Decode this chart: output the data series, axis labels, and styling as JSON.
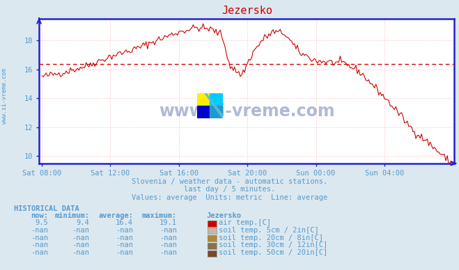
{
  "title": "Jezersko",
  "bg_color": "#dce8f0",
  "plot_bg_color": "#ffffff",
  "grid_color": "#ffbbbb",
  "grid_style": ":",
  "axis_color": "#2222cc",
  "title_color": "#cc0000",
  "text_color": "#5599cc",
  "ylabel_text": "www.si-vreme.com",
  "watermark_text": "www.si-vreme.com",
  "subtitle1": "Slovenia / weather data - automatic stations.",
  "subtitle2": "last day / 5 minutes.",
  "subtitle3": "Values: average  Units: metric  Line: average",
  "hist_title": "HISTORICAL DATA",
  "col_headers": [
    "now:",
    "minimum:",
    "average:",
    "maximum:",
    "Jezersko"
  ],
  "rows": [
    {
      "now": "9.5",
      "min": "9.4",
      "avg": "16.4",
      "max": "19.1",
      "color": "#cc0000",
      "label": "air temp.[C]"
    },
    {
      "now": "-nan",
      "min": "-nan",
      "avg": "-nan",
      "max": "-nan",
      "color": "#c8b8a0",
      "label": "soil temp. 5cm / 2in[C]"
    },
    {
      "now": "-nan",
      "min": "-nan",
      "avg": "-nan",
      "max": "-nan",
      "color": "#b08830",
      "label": "soil temp. 20cm / 8in[C]"
    },
    {
      "now": "-nan",
      "min": "-nan",
      "avg": "-nan",
      "max": "-nan",
      "color": "#887050",
      "label": "soil temp. 30cm / 12in[C]"
    },
    {
      "now": "-nan",
      "min": "-nan",
      "avg": "-nan",
      "max": "-nan",
      "color": "#784828",
      "label": "soil temp. 50cm / 20in[C]"
    }
  ],
  "x_ticks": [
    "Sat 08:00",
    "Sat 12:00",
    "Sat 16:00",
    "Sat 20:00",
    "Sun 00:00",
    "Sun 04:00"
  ],
  "x_tick_positions": [
    0,
    48,
    96,
    144,
    192,
    240
  ],
  "y_ticks": [
    10,
    12,
    14,
    16,
    18
  ],
  "ylim": [
    9.5,
    19.5
  ],
  "xlim": [
    -2,
    289
  ],
  "average_line": 16.4,
  "average_line_color": "#cc0000",
  "line_color": "#cc0000",
  "keypoints_x": [
    0,
    15,
    30,
    48,
    65,
    80,
    96,
    108,
    118,
    126,
    132,
    140,
    148,
    155,
    162,
    170,
    180,
    192,
    202,
    212,
    222,
    235,
    248,
    260,
    270,
    280,
    287
  ],
  "keypoints_y": [
    15.5,
    15.8,
    16.2,
    16.9,
    17.4,
    18.0,
    18.6,
    18.9,
    18.8,
    18.4,
    16.2,
    15.6,
    17.2,
    18.1,
    18.6,
    18.5,
    17.2,
    16.6,
    16.5,
    16.4,
    15.9,
    14.6,
    13.2,
    11.8,
    11.0,
    10.1,
    9.5
  ],
  "noise_seed": 42,
  "noise_std": 0.13
}
